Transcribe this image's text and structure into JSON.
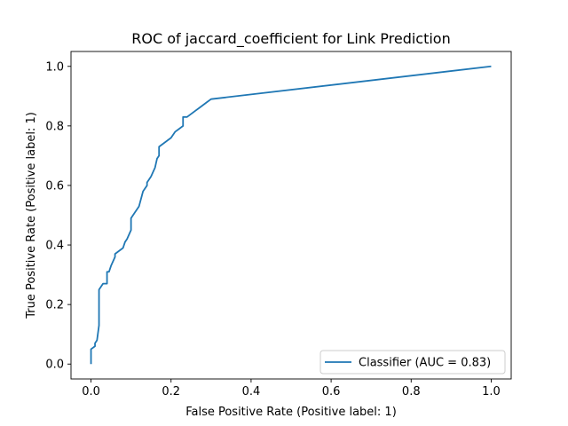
{
  "chart_data": {
    "type": "line",
    "title": "ROC of jaccard_coefficient for Link Prediction",
    "xlabel": "False Positive Rate (Positive label: 1)",
    "ylabel": "True Positive Rate (Positive label: 1)",
    "xlim": [
      -0.05,
      1.05
    ],
    "ylim": [
      -0.05,
      1.05
    ],
    "xticks": [
      "0.0",
      "0.2",
      "0.4",
      "0.6",
      "0.8",
      "1.0"
    ],
    "yticks": [
      "0.0",
      "0.2",
      "0.4",
      "0.6",
      "0.8",
      "1.0"
    ],
    "grid": false,
    "legend_position": "lower-right",
    "colors": {
      "series": "#1f77b4"
    },
    "series": [
      {
        "name": "Classifier (AUC = 0.83)",
        "x": [
          0.0,
          0.0,
          0.0,
          0.01,
          0.01,
          0.015,
          0.02,
          0.02,
          0.02,
          0.025,
          0.03,
          0.04,
          0.04,
          0.045,
          0.05,
          0.06,
          0.06,
          0.07,
          0.08,
          0.085,
          0.09,
          0.1,
          0.1,
          0.11,
          0.12,
          0.13,
          0.14,
          0.14,
          0.15,
          0.16,
          0.165,
          0.17,
          0.17,
          0.18,
          0.2,
          0.21,
          0.22,
          0.23,
          0.23,
          0.24,
          0.25,
          0.26,
          0.27,
          0.28,
          0.29,
          0.3,
          1.0
        ],
        "y": [
          0.0,
          0.04,
          0.05,
          0.06,
          0.07,
          0.08,
          0.13,
          0.15,
          0.25,
          0.26,
          0.27,
          0.27,
          0.31,
          0.31,
          0.33,
          0.36,
          0.37,
          0.38,
          0.39,
          0.41,
          0.42,
          0.45,
          0.49,
          0.51,
          0.53,
          0.58,
          0.6,
          0.61,
          0.63,
          0.66,
          0.69,
          0.7,
          0.73,
          0.74,
          0.76,
          0.78,
          0.79,
          0.8,
          0.83,
          0.83,
          0.84,
          0.85,
          0.86,
          0.87,
          0.88,
          0.89,
          1.0
        ]
      }
    ]
  }
}
